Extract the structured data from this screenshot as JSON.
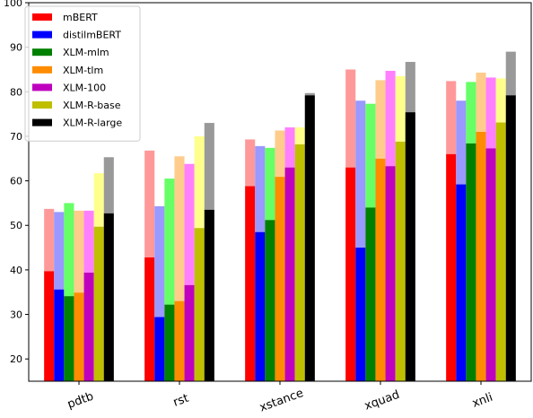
{
  "chart_data": {
    "type": "bar",
    "categories": [
      "pdtb",
      "rst",
      "xstance",
      "xquad",
      "xnli"
    ],
    "ylim": [
      15,
      100
    ],
    "yticks": [
      20,
      30,
      40,
      50,
      60,
      70,
      80,
      90,
      100
    ],
    "legend_position": "top-left",
    "grid": false,
    "stacked_overlay": "solid lower value with lighter upper value",
    "series": [
      {
        "name": "mBERT",
        "color": "#ff0000",
        "light_color": "#ff9999",
        "lower": [
          39.7,
          42.8,
          58.8,
          63.0,
          66.0
        ],
        "upper": [
          53.7,
          66.8,
          69.3,
          85.0,
          82.4
        ]
      },
      {
        "name": "distilmBERT",
        "color": "#0000ff",
        "light_color": "#9999ff",
        "lower": [
          35.6,
          29.4,
          48.5,
          45.0,
          59.2
        ],
        "upper": [
          53.0,
          54.3,
          67.8,
          78.0,
          78.0
        ]
      },
      {
        "name": "XLM-mlm",
        "color": "#008000",
        "light_color": "#66ff66",
        "lower": [
          34.1,
          32.2,
          51.2,
          54.0,
          68.4
        ],
        "upper": [
          55.0,
          60.5,
          67.4,
          77.3,
          82.2
        ]
      },
      {
        "name": "XLM-tlm",
        "color": "#ff8c00",
        "light_color": "#ffcc8c",
        "lower": [
          34.9,
          33.0,
          60.9,
          65.0,
          71.0
        ],
        "upper": [
          53.3,
          65.5,
          71.3,
          82.6,
          84.3
        ]
      },
      {
        "name": "XLM-100",
        "color": "#bf00bf",
        "light_color": "#ff80ff",
        "lower": [
          39.4,
          36.6,
          63.0,
          63.3,
          67.3
        ],
        "upper": [
          53.3,
          63.8,
          72.0,
          84.7,
          83.2
        ]
      },
      {
        "name": "XLM-R-base",
        "color": "#bfbf00",
        "light_color": "#ffff8c",
        "lower": [
          49.7,
          49.4,
          68.2,
          68.8,
          73.1
        ],
        "upper": [
          61.7,
          70.0,
          72.0,
          83.5,
          83.0
        ]
      },
      {
        "name": "XLM-R-large",
        "color": "#000000",
        "light_color": "#999999",
        "lower": [
          52.7,
          53.5,
          79.2,
          75.4,
          79.2
        ],
        "upper": [
          65.3,
          73.0,
          79.7,
          86.7,
          89.0
        ]
      }
    ]
  }
}
